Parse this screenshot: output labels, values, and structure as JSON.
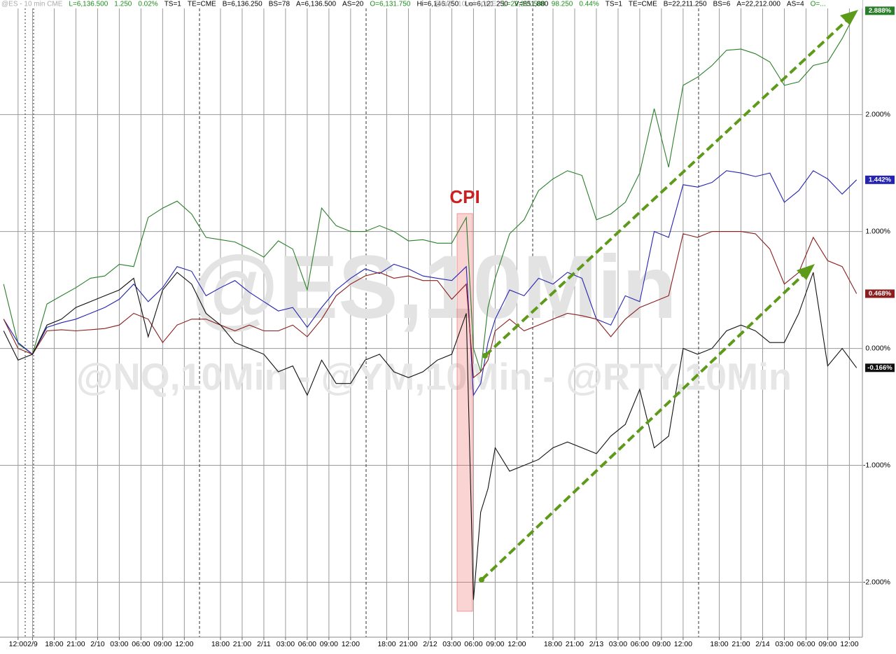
{
  "chart_data": {
    "type": "line",
    "header": {
      "left": [
        {
          "text": "@ES - 10 min CME",
          "color": "#aaaaaa"
        },
        {
          "text": "L=6,136.500",
          "color": "#1e8c1e"
        },
        {
          "text": "1.250",
          "color": "#1e8c1e"
        },
        {
          "text": "0.02%",
          "color": "#1e8c1e"
        },
        {
          "text": "TS=1",
          "color": "#000000"
        },
        {
          "text": "TE=CME",
          "color": "#000000"
        },
        {
          "text": "B=6,136.250",
          "color": "#000000"
        },
        {
          "text": "BS=78",
          "color": "#000000"
        },
        {
          "text": "A=6,136.500",
          "color": "#000000"
        },
        {
          "text": "AS=20",
          "color": "#000000"
        },
        {
          "text": "O=6,131.750",
          "color": "#1e8c1e"
        },
        {
          "text": "Hi=6,146.750",
          "color": "#000000"
        },
        {
          "text": "Lo=6,121.250",
          "color": "#000000"
        },
        {
          "text": "V=851,880",
          "color": "#000000"
        }
      ],
      "right": [
        {
          "text": "@NQ - 10 min CME",
          "color": "#aaaaaa"
        },
        {
          "text": "L=22,211.500",
          "color": "#1e8c1e"
        },
        {
          "text": "98.250",
          "color": "#1e8c1e"
        },
        {
          "text": "0.44%",
          "color": "#1e8c1e"
        },
        {
          "text": "TS=1",
          "color": "#000000"
        },
        {
          "text": "TE=CME",
          "color": "#000000"
        },
        {
          "text": "B=22,211.250",
          "color": "#000000"
        },
        {
          "text": "BS=6",
          "color": "#000000"
        },
        {
          "text": "A=22,212.000",
          "color": "#000000"
        },
        {
          "text": "AS=4",
          "color": "#000000"
        },
        {
          "text": "O=...",
          "color": "#1e8c1e"
        }
      ]
    },
    "watermark": [
      "@ES,10Min",
      "@NQ,10Min - @YM,10Min - @RTY,10Min"
    ],
    "annotation": "CPI",
    "xlim": [
      -2.5,
      116.8
    ],
    "xticks": [
      {
        "value": 0,
        "label": "12:00"
      },
      {
        "value": 2,
        "label": "2/9"
      },
      {
        "value": 5,
        "label": "18:00"
      },
      {
        "value": 8,
        "label": "21:00"
      },
      {
        "value": 11,
        "label": "2/10"
      },
      {
        "value": 14,
        "label": "03:00"
      },
      {
        "value": 17,
        "label": "06:00"
      },
      {
        "value": 20,
        "label": "09:00"
      },
      {
        "value": 23,
        "label": "12:00"
      },
      {
        "value": 28,
        "label": "18:00"
      },
      {
        "value": 31,
        "label": "21:00"
      },
      {
        "value": 34,
        "label": "2/11"
      },
      {
        "value": 37,
        "label": "03:00"
      },
      {
        "value": 40,
        "label": "06:00"
      },
      {
        "value": 43,
        "label": "09:00"
      },
      {
        "value": 46,
        "label": "12:00"
      },
      {
        "value": 51,
        "label": "18:00"
      },
      {
        "value": 54,
        "label": "21:00"
      },
      {
        "value": 57,
        "label": "2/12"
      },
      {
        "value": 60,
        "label": "03:00"
      },
      {
        "value": 63,
        "label": "06:00"
      },
      {
        "value": 66,
        "label": "09:00"
      },
      {
        "value": 69,
        "label": "12:00"
      },
      {
        "value": 74,
        "label": "18:00"
      },
      {
        "value": 77,
        "label": "21:00"
      },
      {
        "value": 80,
        "label": "2/13"
      },
      {
        "value": 83,
        "label": "03:00"
      },
      {
        "value": 86,
        "label": "06:00"
      },
      {
        "value": 89,
        "label": "09:00"
      },
      {
        "value": 92,
        "label": "12:00"
      },
      {
        "value": 97,
        "label": "18:00"
      },
      {
        "value": 100,
        "label": "21:00"
      },
      {
        "value": 103,
        "label": "2/14"
      },
      {
        "value": 106,
        "label": "03:00"
      },
      {
        "value": 109,
        "label": "06:00"
      },
      {
        "value": 112,
        "label": "09:00"
      },
      {
        "value": 115,
        "label": "12:00"
      }
    ],
    "ylim": [
      -2.47,
      2.98
    ],
    "yticks": [
      {
        "value": 2,
        "label": "2.000%"
      },
      {
        "value": 1,
        "label": "1.000%"
      },
      {
        "value": 0,
        "label": "0.000%"
      },
      {
        "value": -1,
        "label": "-1.000%"
      },
      {
        "value": -2,
        "label": "-2.000%"
      }
    ],
    "grid": true,
    "x": [
      -2,
      0,
      2,
      4,
      6,
      8,
      10,
      12,
      14,
      16,
      18,
      20,
      22,
      24,
      26,
      28,
      30,
      32,
      34,
      36,
      38,
      40,
      42,
      44,
      46,
      48,
      50,
      52,
      54,
      56,
      58,
      60,
      62,
      63,
      64,
      65,
      66,
      68,
      70,
      72,
      74,
      76,
      78,
      80,
      82,
      84,
      86,
      88,
      90,
      92,
      94,
      96,
      98,
      100,
      102,
      104,
      106,
      108,
      110,
      112,
      114,
      116
    ],
    "series": [
      {
        "color": "#2a7f2a",
        "last": {
          "value": 2.888,
          "label": "2.888%"
        },
        "values": [
          0.55,
          0.04,
          -0.05,
          0.38,
          0.45,
          0.52,
          0.6,
          0.62,
          0.72,
          0.7,
          1.12,
          1.2,
          1.26,
          1.15,
          0.95,
          0.93,
          0.91,
          0.85,
          0.78,
          0.92,
          0.85,
          0.5,
          1.2,
          1.05,
          1.0,
          1.0,
          1.05,
          1.0,
          0.92,
          0.93,
          0.9,
          0.9,
          1.12,
          0.0,
          -0.2,
          0.35,
          0.6,
          0.98,
          1.1,
          1.35,
          1.45,
          1.52,
          1.48,
          1.1,
          1.15,
          1.25,
          1.5,
          2.05,
          1.55,
          2.25,
          2.32,
          2.42,
          2.55,
          2.56,
          2.52,
          2.45,
          2.25,
          2.28,
          2.42,
          2.45,
          2.65,
          2.888
        ]
      },
      {
        "color": "#2424b0",
        "last": {
          "value": 1.442,
          "label": "1.442%"
        },
        "values": [
          0.25,
          0.05,
          -0.05,
          0.18,
          0.22,
          0.25,
          0.3,
          0.35,
          0.42,
          0.55,
          0.4,
          0.52,
          0.7,
          0.66,
          0.45,
          0.52,
          0.58,
          0.48,
          0.4,
          0.32,
          0.35,
          0.18,
          0.35,
          0.5,
          0.6,
          0.68,
          0.64,
          0.72,
          0.68,
          0.62,
          0.6,
          0.58,
          0.7,
          -0.4,
          -0.3,
          0.05,
          0.25,
          0.5,
          0.45,
          0.6,
          0.55,
          0.65,
          0.6,
          0.25,
          0.2,
          0.45,
          0.4,
          1.0,
          0.95,
          1.4,
          1.38,
          1.42,
          1.52,
          1.5,
          1.47,
          1.5,
          1.25,
          1.35,
          1.52,
          1.45,
          1.32,
          1.442
        ]
      },
      {
        "color": "#8b1e1e",
        "last": {
          "value": 0.468,
          "label": "0.468%"
        },
        "values": [
          0.25,
          0.0,
          -0.05,
          0.15,
          0.16,
          0.15,
          0.16,
          0.17,
          0.2,
          0.3,
          0.25,
          0.05,
          0.2,
          0.25,
          0.25,
          0.2,
          0.15,
          0.2,
          0.15,
          0.15,
          0.2,
          0.1,
          0.25,
          0.45,
          0.55,
          0.62,
          0.65,
          0.6,
          0.62,
          0.58,
          0.58,
          0.42,
          0.55,
          -0.25,
          -0.2,
          -0.1,
          0.15,
          0.25,
          0.15,
          0.2,
          0.25,
          0.3,
          0.28,
          0.25,
          0.1,
          0.25,
          0.35,
          0.4,
          0.45,
          0.98,
          0.95,
          1.0,
          1.0,
          1.0,
          0.98,
          0.85,
          0.55,
          0.65,
          0.95,
          0.75,
          0.7,
          0.468
        ]
      },
      {
        "color": "#111111",
        "last": {
          "value": -0.166,
          "label": "-0.166%"
        },
        "values": [
          0.15,
          -0.1,
          -0.05,
          0.2,
          0.25,
          0.35,
          0.4,
          0.45,
          0.5,
          0.6,
          0.1,
          0.5,
          0.65,
          0.55,
          0.3,
          0.2,
          0.05,
          0.0,
          -0.05,
          -0.2,
          -0.15,
          -0.4,
          -0.1,
          -0.3,
          -0.3,
          -0.1,
          -0.05,
          -0.2,
          -0.25,
          -0.2,
          -0.1,
          -0.05,
          0.3,
          -2.15,
          -1.4,
          -1.2,
          -0.85,
          -1.05,
          -1.0,
          -0.95,
          -0.85,
          -0.8,
          -0.85,
          -0.9,
          -0.75,
          -0.65,
          -0.35,
          -0.85,
          -0.75,
          0.0,
          -0.05,
          0.0,
          0.15,
          0.2,
          0.15,
          0.05,
          0.05,
          0.3,
          0.65,
          -0.15,
          0.0,
          -0.166
        ]
      }
    ]
  }
}
